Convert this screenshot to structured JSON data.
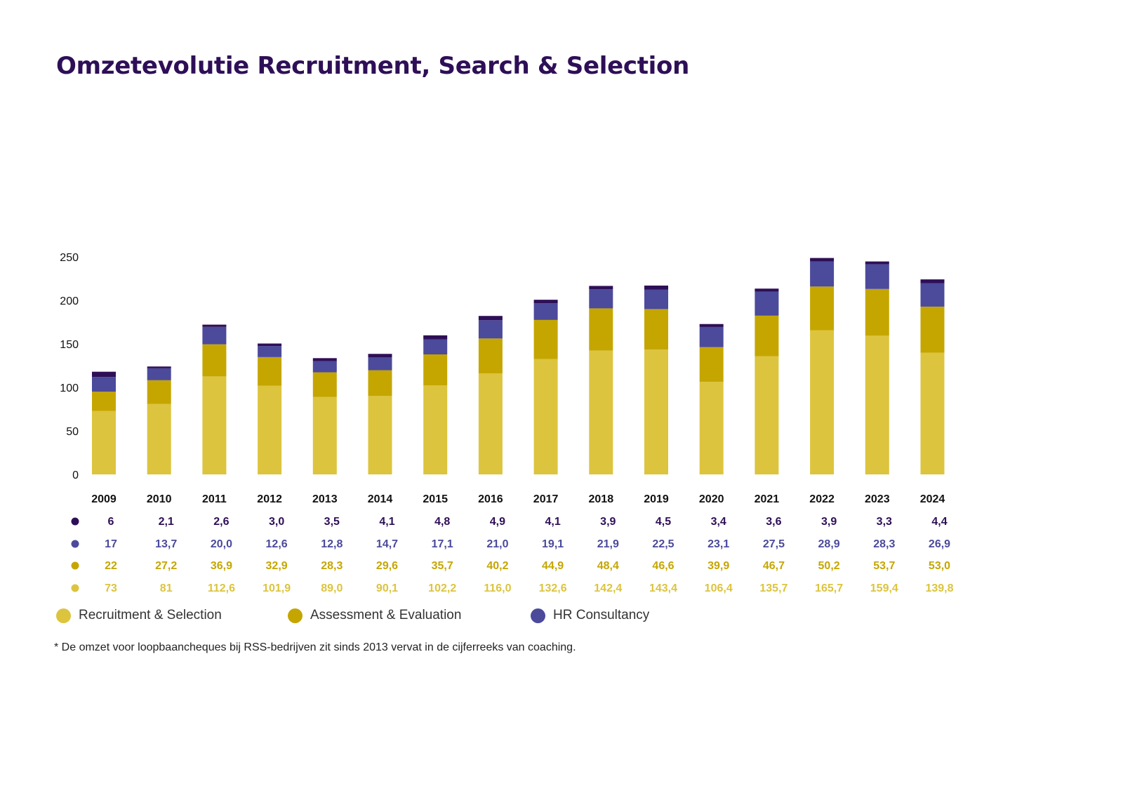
{
  "title": "Omzetevolutie Recruitment, Search & Selection",
  "footnote": "* De omzet voor loopbaancheques bij RSS-bedrijven zit sinds 2013 vervat in de cijferreeks van coaching.",
  "legend": [
    {
      "label": "Recruitment & Selection",
      "color": "#dcc43e"
    },
    {
      "label": "Assessment & Evaluation",
      "color": "#c5a600"
    },
    {
      "label": "HR Consultancy",
      "color": "#4b4a9b"
    }
  ],
  "chart_data": {
    "type": "bar",
    "stacked": true,
    "categories": [
      "2009",
      "2010",
      "2011",
      "2012",
      "2013",
      "2014",
      "2015",
      "2016",
      "2017",
      "2018",
      "2019",
      "2020",
      "2021",
      "2022",
      "2023",
      "2024"
    ],
    "ylim": [
      0,
      250
    ],
    "yticks": [
      0,
      50,
      100,
      150,
      200,
      250
    ],
    "grid": false,
    "series": [
      {
        "name": "Recruitment & Selection",
        "color": "#dcc43e",
        "label_color": "#dcc43e",
        "values": [
          73,
          81,
          112.6,
          101.9,
          89.0,
          90.1,
          102.2,
          116.0,
          132.6,
          142.4,
          143.4,
          106.4,
          135.7,
          165.7,
          159.4,
          139.8
        ],
        "labels": [
          "73",
          "81",
          "112,6",
          "101,9",
          "89,0",
          "90,1",
          "102,2",
          "116,0",
          "132,6",
          "142,4",
          "143,4",
          "106,4",
          "135,7",
          "165,7",
          "159,4",
          "139,8"
        ]
      },
      {
        "name": "Assessment & Evaluation",
        "color": "#c5a600",
        "label_color": "#c5a600",
        "values": [
          22,
          27.2,
          36.9,
          32.9,
          28.3,
          29.6,
          35.7,
          40.2,
          44.9,
          48.4,
          46.6,
          39.9,
          46.7,
          50.2,
          53.7,
          53.0
        ],
        "labels": [
          "22",
          "27,2",
          "36,9",
          "32,9",
          "28,3",
          "29,6",
          "35,7",
          "40,2",
          "44,9",
          "48,4",
          "46,6",
          "39,9",
          "46,7",
          "50,2",
          "53,7",
          "53,0"
        ]
      },
      {
        "name": "HR Consultancy",
        "color": "#4b4a9b",
        "label_color": "#4b4a9b",
        "values": [
          17,
          13.7,
          20.0,
          12.6,
          12.8,
          14.7,
          17.1,
          21.0,
          19.1,
          21.9,
          22.5,
          23.1,
          27.5,
          28.9,
          28.3,
          26.9
        ],
        "labels": [
          "17",
          "13,7",
          "20,0",
          "12,6",
          "12,8",
          "14,7",
          "17,1",
          "21,0",
          "19,1",
          "21,9",
          "22,5",
          "23,1",
          "27,5",
          "28,9",
          "28,3",
          "26,9"
        ]
      },
      {
        "name": "",
        "color": "#2e0f57",
        "label_color": "#2e0f57",
        "values": [
          6,
          2.1,
          2.6,
          3.0,
          3.5,
          4.1,
          4.8,
          4.9,
          4.1,
          3.9,
          4.5,
          3.4,
          3.6,
          3.9,
          3.3,
          4.4
        ],
        "labels": [
          "6",
          "2,1",
          "2,6",
          "3,0",
          "3,5",
          "4,1",
          "4,8",
          "4,9",
          "4,1",
          "3,9",
          "4,5",
          "3,4",
          "3,6",
          "3,9",
          "3,3",
          "4,4"
        ]
      }
    ],
    "table_row_order": [
      3,
      2,
      1,
      0
    ]
  }
}
